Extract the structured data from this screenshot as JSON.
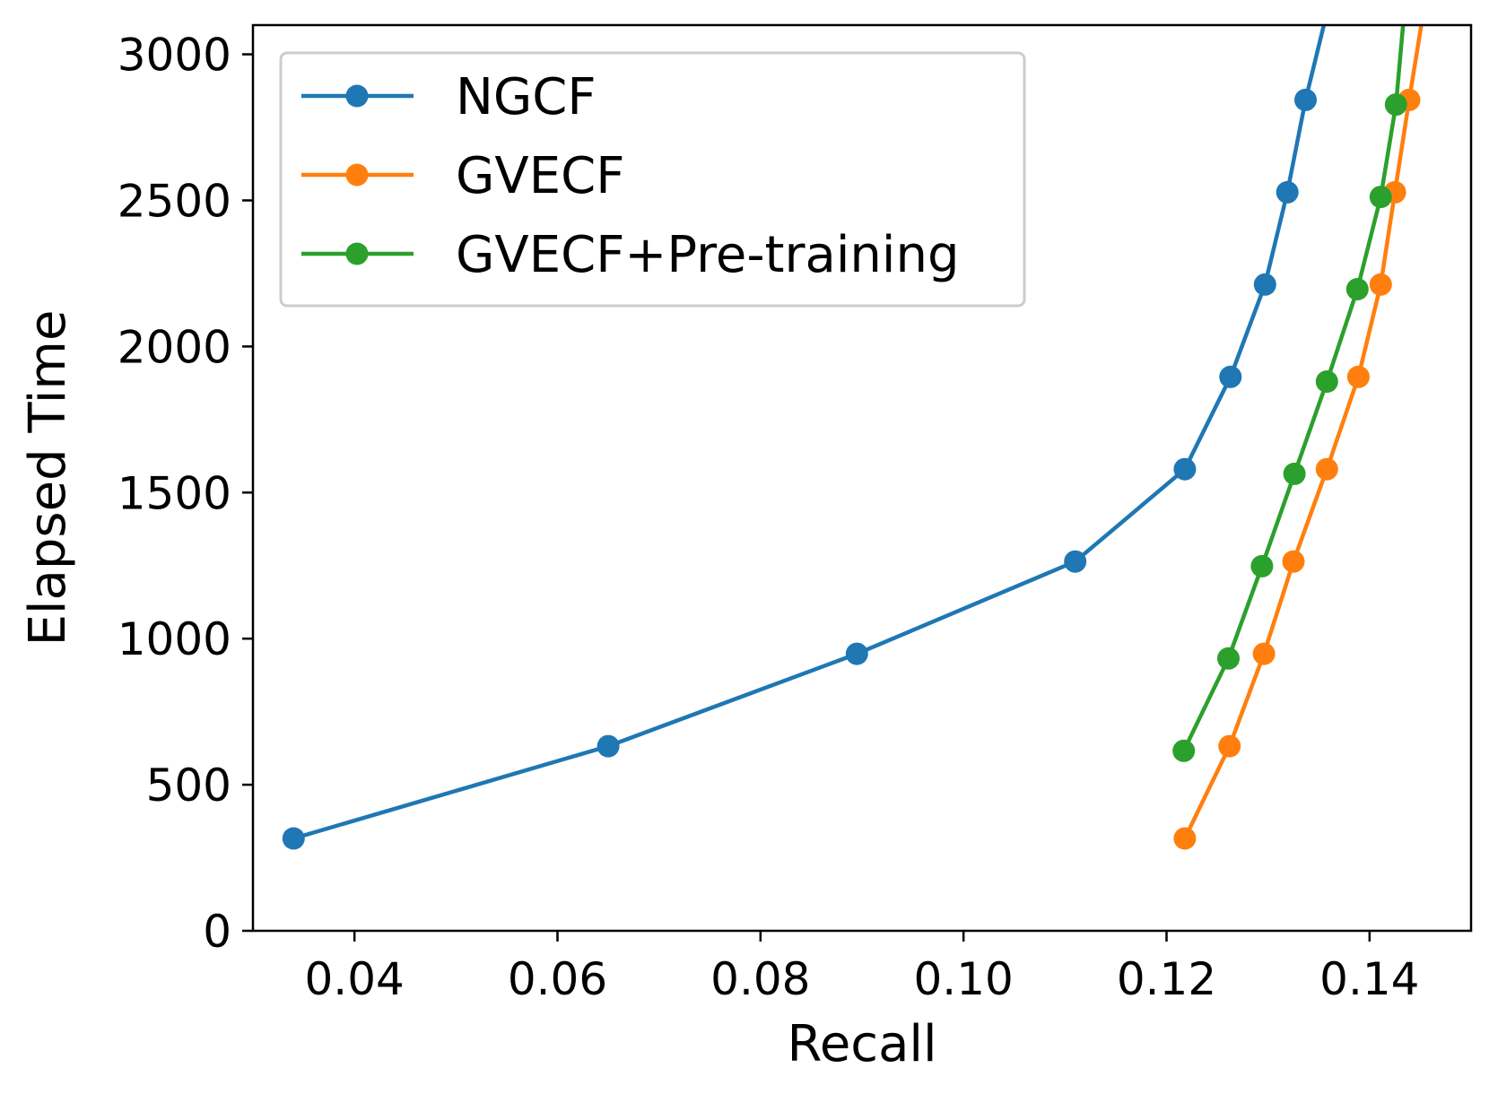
{
  "chart_data": {
    "type": "line",
    "title": "",
    "xlabel": "Recall",
    "ylabel": "Elapsed Time",
    "xlim": [
      0.03,
      0.15
    ],
    "ylim": [
      0,
      3100
    ],
    "xticks": [
      0.04,
      0.06,
      0.08,
      0.1,
      0.12,
      0.14
    ],
    "xtick_labels": [
      "0.04",
      "0.06",
      "0.08",
      "0.10",
      "0.12",
      "0.14"
    ],
    "yticks": [
      0,
      500,
      1000,
      1500,
      2000,
      2500,
      3000
    ],
    "ytick_labels": [
      "0",
      "500",
      "1000",
      "1500",
      "2000",
      "2500",
      "3000"
    ],
    "grid": false,
    "legend_position": "top-left",
    "series": [
      {
        "name": "NGCF",
        "color": "#1f77b4",
        "x": [
          0.034,
          0.065,
          0.0895,
          0.111,
          0.1218,
          0.1263,
          0.1297,
          0.1319,
          0.1337,
          0.1355
        ],
        "y": [
          316,
          632,
          948,
          1264,
          1580,
          1896,
          2212,
          2528,
          2844,
          3100
        ],
        "marker_count": 9
      },
      {
        "name": "GVECF",
        "color": "#ff7f0e",
        "x": [
          0.1218,
          0.1262,
          0.1296,
          0.1325,
          0.1358,
          0.1389,
          0.1411,
          0.1425,
          0.1439,
          0.1451
        ],
        "y": [
          316,
          632,
          948,
          1264,
          1580,
          1896,
          2212,
          2528,
          2844,
          3100
        ],
        "marker_count": 9
      },
      {
        "name": "GVECF+Pre-training",
        "color": "#2ca02c",
        "x": [
          0.1217,
          0.1261,
          0.1294,
          0.1326,
          0.1358,
          0.1388,
          0.1411,
          0.1426,
          0.1433
        ],
        "y": [
          616,
          932,
          1248,
          1564,
          1880,
          2196,
          2512,
          2828,
          3100
        ],
        "marker_count": 8
      }
    ]
  }
}
